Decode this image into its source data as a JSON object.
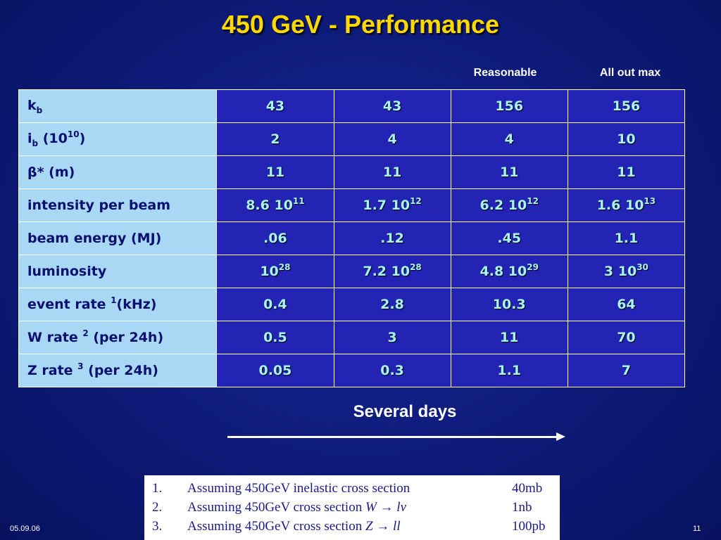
{
  "title": "450 GeV - Performance",
  "column_headers": {
    "reasonable": "Reasonable",
    "all_out_max": "All out max"
  },
  "table": {
    "rows": [
      {
        "label": {
          "main": "k",
          "sub": "b"
        },
        "values": [
          "43",
          "43",
          "156",
          "156"
        ]
      },
      {
        "label": {
          "main": "i",
          "sub": "b",
          "rest_before": " (10",
          "sup": "10",
          "rest_after": ")"
        },
        "values": [
          "2",
          "4",
          "4",
          "10"
        ]
      },
      {
        "label": {
          "main": "β",
          "rest_after": "* (m)"
        },
        "values": [
          "11",
          "11",
          "11",
          "11"
        ]
      },
      {
        "label": {
          "main": "intensity per beam"
        },
        "values": [
          {
            "base": "8.6 10",
            "exp": "11"
          },
          {
            "base": "1.7 10",
            "exp": "12"
          },
          {
            "base": "6.2 10",
            "exp": "12"
          },
          {
            "base": "1.6 10",
            "exp": "13"
          }
        ]
      },
      {
        "label": {
          "main": "beam energy (MJ)"
        },
        "values": [
          ".06",
          ".12",
          ".45",
          "1.1"
        ]
      },
      {
        "label": {
          "main": "luminosity"
        },
        "values": [
          {
            "base": "10",
            "exp": "28"
          },
          {
            "base": "7.2 10",
            "exp": "28"
          },
          {
            "base": "4.8 10",
            "exp": "29"
          },
          {
            "base": "3 10",
            "exp": "30"
          }
        ]
      },
      {
        "label": {
          "main": "event rate ",
          "sup": "1",
          "rest_after": "(kHz)"
        },
        "values": [
          "0.4",
          "2.8",
          "10.3",
          "64"
        ]
      },
      {
        "label": {
          "main": "W rate ",
          "sup": "2",
          "rest_after": " (per 24h)"
        },
        "values": [
          "0.5",
          "3",
          "11",
          "70"
        ]
      },
      {
        "label": {
          "main": "Z rate ",
          "sup": "3",
          "rest_after": " (per 24h)"
        },
        "values": [
          "0.05",
          "0.3",
          "1.1",
          "7"
        ]
      }
    ]
  },
  "arrow_label": "Several days",
  "footnotes": [
    {
      "num": "1.",
      "text_before": "Assuming 450GeV inelastic cross section",
      "formula": "",
      "amount": "40mb"
    },
    {
      "num": "2.",
      "text_before": "Assuming 450GeV cross section ",
      "formula": "W → lv",
      "amount": "1nb"
    },
    {
      "num": "3.",
      "text_before": "Assuming 450GeV cross section ",
      "formula": "Z → ll",
      "amount": "100pb"
    }
  ],
  "footer": {
    "date": "05.09.06",
    "page_number": "11"
  },
  "colors": {
    "title": "#ffd800",
    "label_cell_bg": "#a8d8f4",
    "value_cell_bg": "#2323b4",
    "value_text": "#a8f4f4",
    "background": "#0d1a78"
  }
}
